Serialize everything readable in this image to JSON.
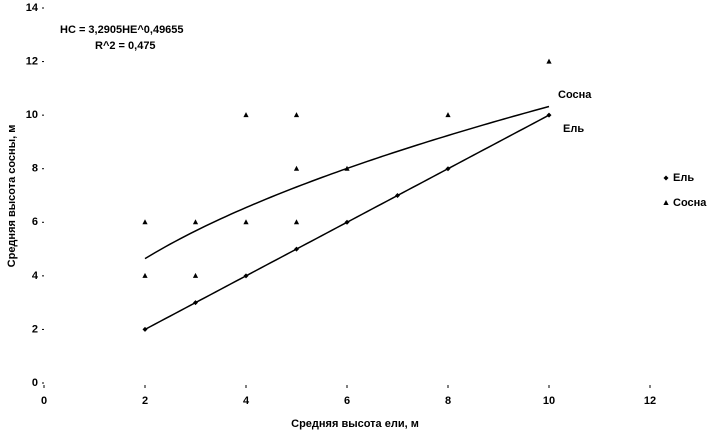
{
  "chart_data": {
    "type": "scatter",
    "x_label": "Средняя высота ели, м",
    "y_label": "Средняя высота сосны, м",
    "xlim": [
      0,
      12
    ],
    "ylim": [
      0,
      14
    ],
    "xticks": [
      0,
      2,
      4,
      6,
      8,
      10,
      12
    ],
    "yticks": [
      0,
      2,
      4,
      6,
      8,
      10,
      12,
      14
    ],
    "legend_position": "right",
    "annotations": [
      "HC = 3,2905HE^0,49655",
      "R^2 = 0,475"
    ],
    "line_labels": [
      "Сосна",
      "Ель"
    ],
    "series": [
      {
        "name": "Ель",
        "color": "#000000",
        "marker": "diamond",
        "x": [
          2,
          3,
          4,
          5,
          6,
          7,
          8,
          10
        ],
        "values": [
          2,
          3,
          4,
          5,
          6,
          7,
          8,
          10
        ],
        "trendline": {
          "type": "linear",
          "coefficients": [
            1,
            0
          ],
          "range": [
            2,
            10
          ]
        }
      },
      {
        "name": "Сосна",
        "color": "#000000",
        "marker": "triangle",
        "x": [
          2,
          2,
          3,
          3,
          4,
          4,
          5,
          5,
          5,
          6,
          8,
          10
        ],
        "values": [
          6,
          4,
          6,
          4,
          10,
          6,
          10,
          8,
          6,
          8,
          10,
          12
        ],
        "trendline": {
          "type": "power",
          "coefficients": [
            3.2905,
            0.49655
          ],
          "range": [
            2,
            10
          ]
        }
      }
    ]
  }
}
